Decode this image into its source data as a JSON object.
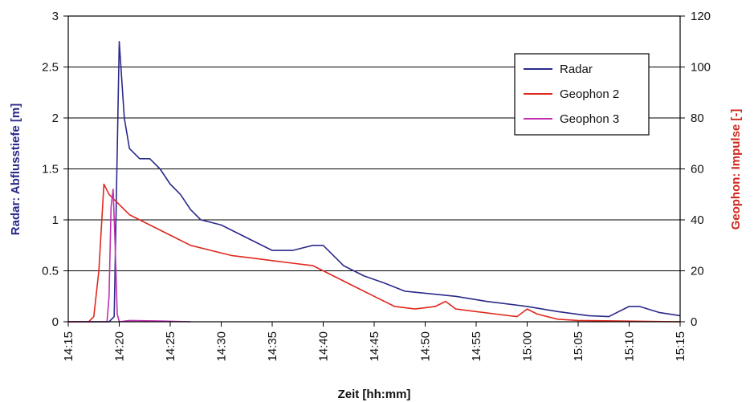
{
  "chart_data": {
    "type": "line",
    "xlabel": "Zeit [hh:mm]",
    "ylabel": "Radar: Abflusstiefe [m]",
    "y2label": "Geophon: Impulse [-]",
    "xticks": [
      "14:15",
      "14:20",
      "14:25",
      "14:30",
      "14:35",
      "14:40",
      "14:45",
      "14:50",
      "14:55",
      "15:00",
      "15:05",
      "15:10",
      "15:15"
    ],
    "yticks": [
      "0",
      "0.5",
      "1",
      "1.5",
      "2",
      "2.5",
      "3"
    ],
    "y2ticks": [
      "0",
      "20",
      "40",
      "60",
      "80",
      "100",
      "120"
    ],
    "xlim": [
      "14:15",
      "15:15"
    ],
    "ylim": [
      0,
      3
    ],
    "y2lim": [
      0,
      120
    ],
    "grid": "horizontal",
    "legend_position": "top-right",
    "colors": {
      "radar": "#2a2a8a",
      "geophon2": "#e0281e",
      "geophon3": "#c030b0",
      "ylabel": "#2a2a8a",
      "y2label": "#d0281e"
    },
    "series": [
      {
        "name": "Radar",
        "axis": "left",
        "x": [
          "14:15",
          "14:19",
          "14:19.5",
          "14:20",
          "14:20.5",
          "14:21",
          "14:22",
          "14:23",
          "14:24",
          "14:25",
          "14:26",
          "14:27",
          "14:28",
          "14:30",
          "14:32",
          "14:35",
          "14:37",
          "14:39",
          "14:40",
          "14:42",
          "14:44",
          "14:46",
          "14:48",
          "14:50",
          "14:53",
          "14:56",
          "15:00",
          "15:03",
          "15:06",
          "15:08",
          "15:10",
          "15:11",
          "15:13",
          "15:15"
        ],
        "y": [
          0,
          0,
          0.05,
          2.75,
          2.0,
          1.7,
          1.6,
          1.6,
          1.5,
          1.35,
          1.25,
          1.1,
          1.0,
          0.95,
          0.85,
          0.7,
          0.7,
          0.75,
          0.75,
          0.55,
          0.45,
          0.38,
          0.3,
          0.28,
          0.25,
          0.2,
          0.15,
          0.1,
          0.06,
          0.05,
          0.15,
          0.15,
          0.09,
          0.06
        ]
      },
      {
        "name": "Geophon 2",
        "axis": "right",
        "x": [
          "14:15",
          "14:17",
          "14:17.5",
          "14:18",
          "14:18.5",
          "14:19",
          "14:20",
          "14:21",
          "14:22",
          "14:23",
          "14:25",
          "14:27",
          "14:29",
          "14:31",
          "14:33",
          "14:35",
          "14:37",
          "14:39",
          "14:41",
          "14:43",
          "14:45",
          "14:47",
          "14:49",
          "14:51",
          "14:52",
          "14:53",
          "14:55",
          "14:57",
          "14:59",
          "15:00",
          "15:01",
          "15:03",
          "15:05",
          "15:15"
        ],
        "y": [
          0,
          0,
          2,
          20,
          54,
          50,
          46,
          42,
          40,
          38,
          34,
          30,
          28,
          26,
          25,
          24,
          23,
          22,
          18,
          14,
          10,
          6,
          5,
          6,
          8,
          5,
          4,
          3,
          2,
          5,
          3,
          1,
          0.5,
          0
        ]
      },
      {
        "name": "Geophon 3",
        "axis": "right",
        "x": [
          "14:15",
          "14:18.8",
          "14:19",
          "14:19.2",
          "14:19.4",
          "14:19.6",
          "14:19.8",
          "14:20",
          "14:21",
          "14:24",
          "14:27"
        ],
        "y": [
          0,
          0,
          10,
          45,
          52,
          30,
          3,
          0,
          0.5,
          0.3,
          0
        ]
      }
    ]
  }
}
